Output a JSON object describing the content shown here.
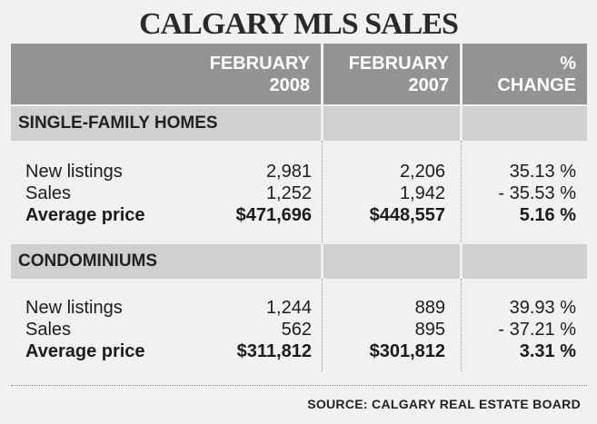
{
  "title": "CALGARY MLS SALES",
  "chart_data": {
    "type": "table",
    "columns": [
      "FEBRUARY 2008",
      "FEBRUARY 2007",
      "% CHANGE"
    ],
    "header": [
      {
        "line1": "FEBRUARY",
        "line2": "2008"
      },
      {
        "line1": "FEBRUARY",
        "line2": "2007"
      },
      {
        "line1": "%",
        "line2": "CHANGE"
      }
    ],
    "sections": [
      {
        "name": "SINGLE-FAMILY HOMES",
        "rows": [
          {
            "label": "New listings",
            "v2008": "2,981",
            "v2007": "2,206",
            "change": "35.13 %"
          },
          {
            "label": "Sales",
            "v2008": "1,252",
            "v2007": "1,942",
            "change": "- 35.53 %"
          },
          {
            "label": "Average price",
            "v2008": "$471,696",
            "v2007": "$448,557",
            "change": "5.16 %"
          }
        ]
      },
      {
        "name": "CONDOMINIUMS",
        "rows": [
          {
            "label": "New listings",
            "v2008": "1,244",
            "v2007": "889",
            "change": "39.93 %"
          },
          {
            "label": "Sales",
            "v2008": "562",
            "v2007": "895",
            "change": "- 37.21 %"
          },
          {
            "label": "Average price",
            "v2008": "$311,812",
            "v2007": "$301,812",
            "change": "3.31 %"
          }
        ]
      }
    ]
  },
  "source": "SOURCE: CALGARY REAL ESTATE BOARD"
}
